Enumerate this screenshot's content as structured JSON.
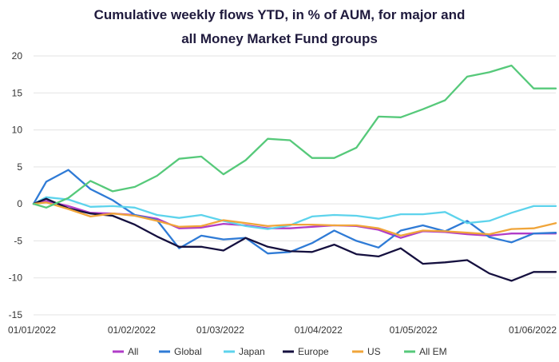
{
  "chart_data": {
    "type": "line",
    "title_line1": "Cumulative weekly flows YTD, in % of AUM, for major and",
    "title_line2": "all Money Market Fund groups",
    "xlabel": "",
    "ylabel": "",
    "ylim": [
      -15,
      20
    ],
    "yticks": [
      20,
      15,
      10,
      5,
      0,
      -5,
      -10,
      -15
    ],
    "xtick_labels": [
      "01/01/2022",
      "01/02/2022",
      "01/03/2022",
      "01/04/2022",
      "01/05/2022",
      "01/06/2022"
    ],
    "x": [
      "2022-01-01",
      "2022-01-05",
      "2022-01-12",
      "2022-01-19",
      "2022-01-26",
      "2022-02-02",
      "2022-02-09",
      "2022-02-16",
      "2022-02-23",
      "2022-03-02",
      "2022-03-09",
      "2022-03-16",
      "2022-03-23",
      "2022-03-30",
      "2022-04-06",
      "2022-04-13",
      "2022-04-20",
      "2022-04-27",
      "2022-05-04",
      "2022-05-11",
      "2022-05-18",
      "2022-05-25",
      "2022-06-01",
      "2022-06-08",
      "2022-06-15"
    ],
    "legend_position": "bottom",
    "grid": "horizontal",
    "series": [
      {
        "name": "All",
        "color": "#b03cc8",
        "values": [
          0,
          0.4,
          -0.3,
          -1.2,
          -1.3,
          -1.5,
          -2.0,
          -3.3,
          -3.2,
          -2.7,
          -2.9,
          -3.3,
          -3.3,
          -3.1,
          -2.9,
          -3.0,
          -3.5,
          -4.6,
          -3.7,
          -3.8,
          -4.1,
          -4.3,
          -4.0,
          -4.0,
          -4.0
        ]
      },
      {
        "name": "Global",
        "color": "#2f7bd6",
        "values": [
          0,
          3.0,
          4.6,
          2.0,
          0.5,
          -1.5,
          -2.2,
          -6.0,
          -4.3,
          -4.8,
          -4.6,
          -6.7,
          -6.5,
          -5.3,
          -3.6,
          -5.0,
          -5.9,
          -3.6,
          -2.9,
          -3.7,
          -2.3,
          -4.5,
          -5.2,
          -4.0,
          -3.9
        ]
      },
      {
        "name": "Japan",
        "color": "#5dd3ec",
        "values": [
          0,
          0.9,
          0.6,
          -0.4,
          -0.3,
          -0.5,
          -1.5,
          -1.9,
          -1.5,
          -2.3,
          -3.0,
          -3.4,
          -2.9,
          -1.7,
          -1.5,
          -1.6,
          -2.0,
          -1.4,
          -1.4,
          -1.1,
          -2.6,
          -2.3,
          -1.2,
          -0.3,
          -0.3
        ]
      },
      {
        "name": "Europe",
        "color": "#15103f",
        "values": [
          0,
          0.7,
          -0.6,
          -1.3,
          -1.6,
          -2.8,
          -4.4,
          -5.8,
          -5.8,
          -6.3,
          -4.6,
          -5.8,
          -6.4,
          -6.5,
          -5.5,
          -6.8,
          -7.1,
          -6.0,
          -8.1,
          -7.9,
          -7.6,
          -9.4,
          -10.4,
          -9.2,
          -9.2
        ]
      },
      {
        "name": "US",
        "color": "#f0a53a",
        "values": [
          0,
          0.2,
          -0.7,
          -1.7,
          -1.3,
          -1.6,
          -2.3,
          -3.1,
          -3.0,
          -2.2,
          -2.6,
          -3.0,
          -2.8,
          -2.8,
          -2.9,
          -2.9,
          -3.3,
          -4.3,
          -3.6,
          -3.7,
          -3.9,
          -4.1,
          -3.4,
          -3.3,
          -2.6
        ]
      },
      {
        "name": "All EM",
        "color": "#56c97a",
        "values": [
          0,
          -0.5,
          0.8,
          3.1,
          1.7,
          2.3,
          3.8,
          6.1,
          6.4,
          4.0,
          5.9,
          8.8,
          8.6,
          6.2,
          6.2,
          7.6,
          11.8,
          11.7,
          12.8,
          14.0,
          17.2,
          17.8,
          18.7,
          15.6,
          15.6
        ]
      }
    ]
  }
}
